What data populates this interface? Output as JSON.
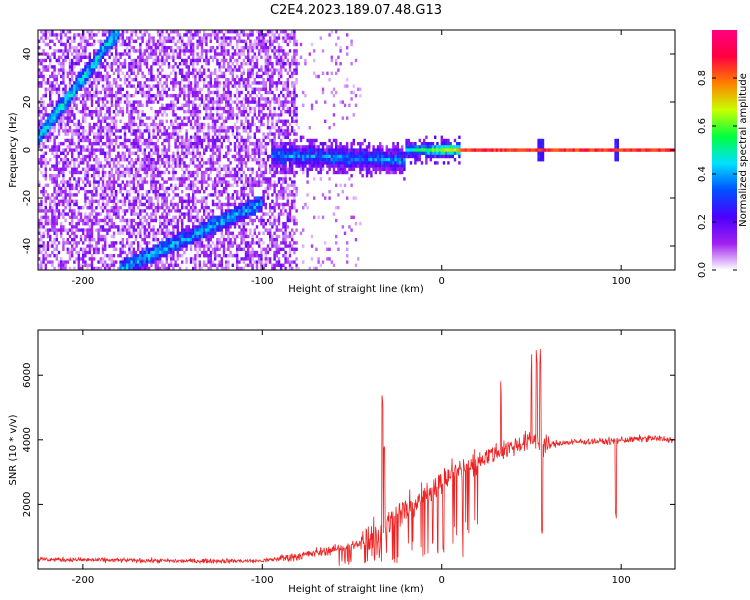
{
  "title": "C2E4.2023.189.07.48.G13",
  "chart_data": [
    {
      "type": "heatmap",
      "xlabel": "Height of straight line (km)",
      "ylabel": "Frequency (Hz)",
      "xlim": [
        -225,
        130
      ],
      "ylim": [
        -50,
        50
      ],
      "xticks": [
        -200,
        -100,
        0,
        100
      ],
      "yticks": [
        -40,
        -20,
        0,
        20,
        40
      ],
      "grid": false,
      "features": {
        "carrier_line": {
          "x_start": -95,
          "x_end": 130,
          "frequency": 0,
          "amplitude": 0.85
        },
        "diagonal_upper": {
          "x_start": -225,
          "x_end": -180,
          "freq_start": 5,
          "freq_end": 50
        },
        "diagonal_lower": {
          "x_start": -180,
          "x_end": -100,
          "freq_start": -50,
          "freq_end": -22
        },
        "noise_region_x": [
          -225,
          -80
        ],
        "sparse_region_x": [
          -80,
          -45
        ]
      },
      "colorbar": {
        "label": "Normalized spectral amplitude",
        "range": [
          0.0,
          1.0
        ],
        "ticks": [
          0.0,
          0.2,
          0.4,
          0.6,
          0.8
        ],
        "colors": [
          "#ffffff",
          "#a020f0",
          "#4b00ff",
          "#0050ff",
          "#00e0ff",
          "#00ff40",
          "#c8ff00",
          "#ff8000",
          "#ff0040",
          "#ff0080"
        ]
      }
    },
    {
      "type": "line",
      "xlabel": "Height of straight line (km)",
      "ylabel": "SNR (10 * v/v)",
      "xlim": [
        -225,
        130
      ],
      "ylim": [
        0,
        7400
      ],
      "xticks": [
        -200,
        -100,
        0,
        100
      ],
      "yticks": [
        2000,
        4000,
        6000
      ],
      "color": "#ee2222",
      "grid": false,
      "profile": {
        "x": [
          -225,
          -150,
          -100,
          -80,
          -60,
          -45,
          -35,
          -25,
          -15,
          -5,
          5,
          15,
          25,
          35,
          45,
          52,
          58,
          65,
          80,
          95,
          100,
          105,
          115,
          130
        ],
        "y": [
          300,
          250,
          250,
          400,
          600,
          800,
          1200,
          1600,
          2000,
          2500,
          2900,
          3200,
          3500,
          3700,
          3900,
          4000,
          3800,
          3900,
          3950,
          3950,
          4000,
          4000,
          4050,
          4000
        ]
      },
      "spikes": [
        {
          "x": -33,
          "y": 5600
        },
        {
          "x": -32,
          "y": 4300
        },
        {
          "x": 33,
          "y": 6200
        },
        {
          "x": 50,
          "y": 7000
        },
        {
          "x": 53,
          "y": 7300
        },
        {
          "x": 55,
          "y": 7200
        },
        {
          "x": 97,
          "y": 4800
        }
      ],
      "dips": [
        {
          "x": 56,
          "y": 1200
        },
        {
          "x": 97,
          "y": 1600
        }
      ]
    }
  ]
}
